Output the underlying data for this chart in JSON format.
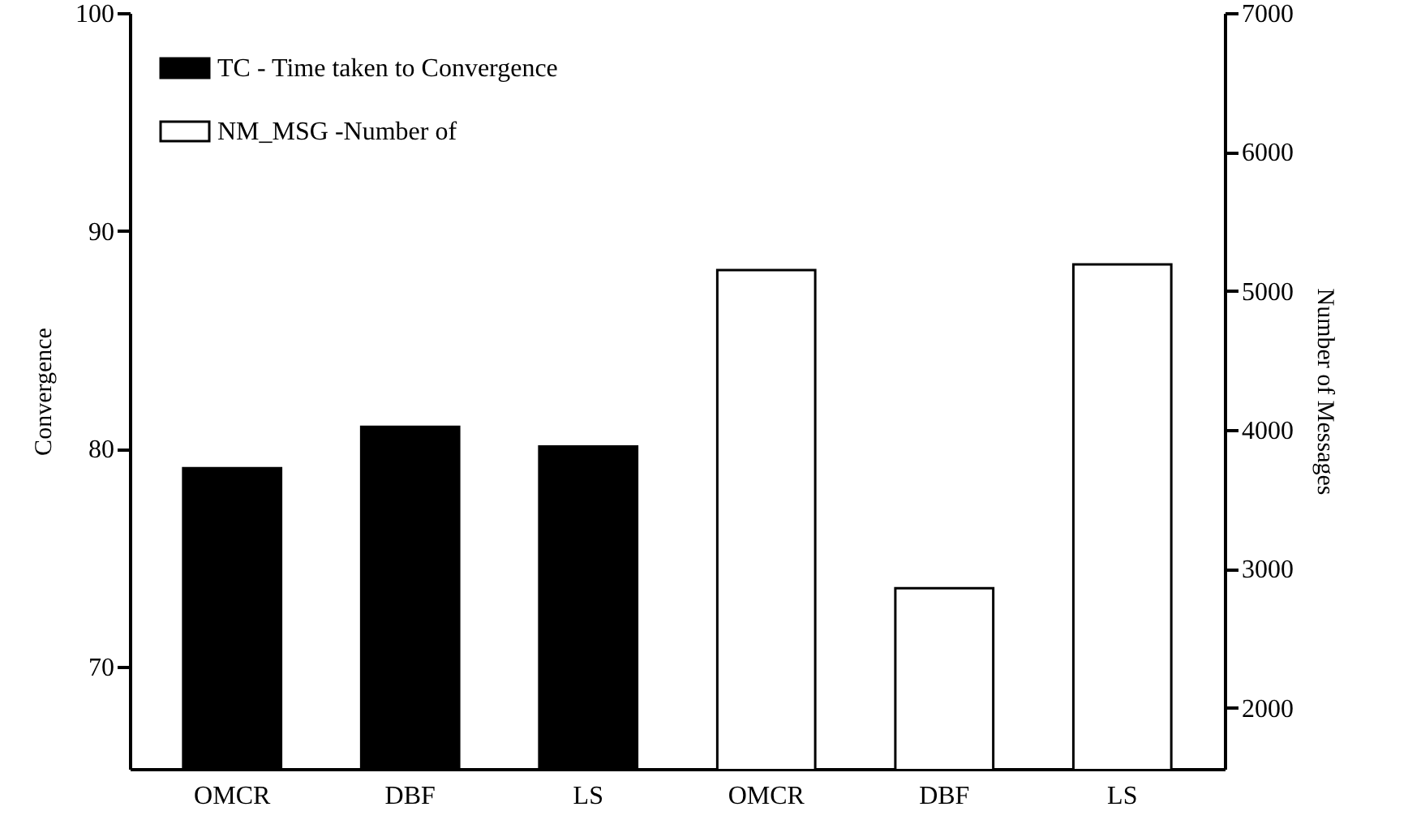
{
  "chart_data": {
    "type": "bar",
    "categories": [
      "OMCR",
      "DBF",
      "LS",
      "OMCR",
      "DBF",
      "LS"
    ],
    "ylabel": "Convergence",
    "y2label": "Number of Messages",
    "ylim": [
      65.3,
      100
    ],
    "yticks": [
      70,
      80,
      90,
      100
    ],
    "y2lim": [
      1560,
      7000
    ],
    "y2ticks": [
      2000,
      3000,
      4000,
      5000,
      6000,
      7000
    ],
    "grid": false,
    "legend": "top left",
    "series": [
      {
        "name": "TC - Time taken to Convergence",
        "color": "#000000",
        "values": [
          79.1,
          81.0,
          80.1,
          null,
          null,
          null
        ]
      },
      {
        "name": "NM_MSG -Number of",
        "color": "#ffffff",
        "axis": "y2",
        "values": [
          null,
          null,
          null,
          5150,
          2860,
          5190
        ]
      }
    ]
  }
}
